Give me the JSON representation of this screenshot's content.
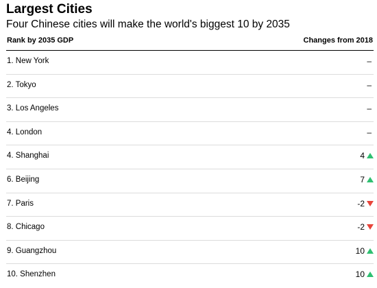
{
  "title": "Largest Cities",
  "subtitle": "Four Chinese cities will make the world's biggest 10 by 2035",
  "table": {
    "columns": [
      "Rank by 2035 GDP",
      "Changes from 2018"
    ],
    "rows": [
      {
        "city": "1. New York",
        "change": "–",
        "direction": "none"
      },
      {
        "city": "2. Tokyo",
        "change": "–",
        "direction": "none"
      },
      {
        "city": "3. Los Angeles",
        "change": "–",
        "direction": "none"
      },
      {
        "city": "4. London",
        "change": "–",
        "direction": "none"
      },
      {
        "city": "4. Shanghai",
        "change": "4",
        "direction": "up"
      },
      {
        "city": "6. Beijing",
        "change": "7",
        "direction": "up"
      },
      {
        "city": "7. Paris",
        "change": "-2",
        "direction": "down"
      },
      {
        "city": "8. Chicago",
        "change": "-2",
        "direction": "down"
      },
      {
        "city": "9. Guangzhou",
        "change": "10",
        "direction": "up"
      },
      {
        "city": "10. Shenzhen",
        "change": "10",
        "direction": "up"
      }
    ]
  },
  "colors": {
    "up": "#2fbf71",
    "down": "#e8443a",
    "divider": "#dcdcdc"
  },
  "icons": {
    "up": "triangle-up-icon",
    "down": "triangle-down-icon"
  }
}
